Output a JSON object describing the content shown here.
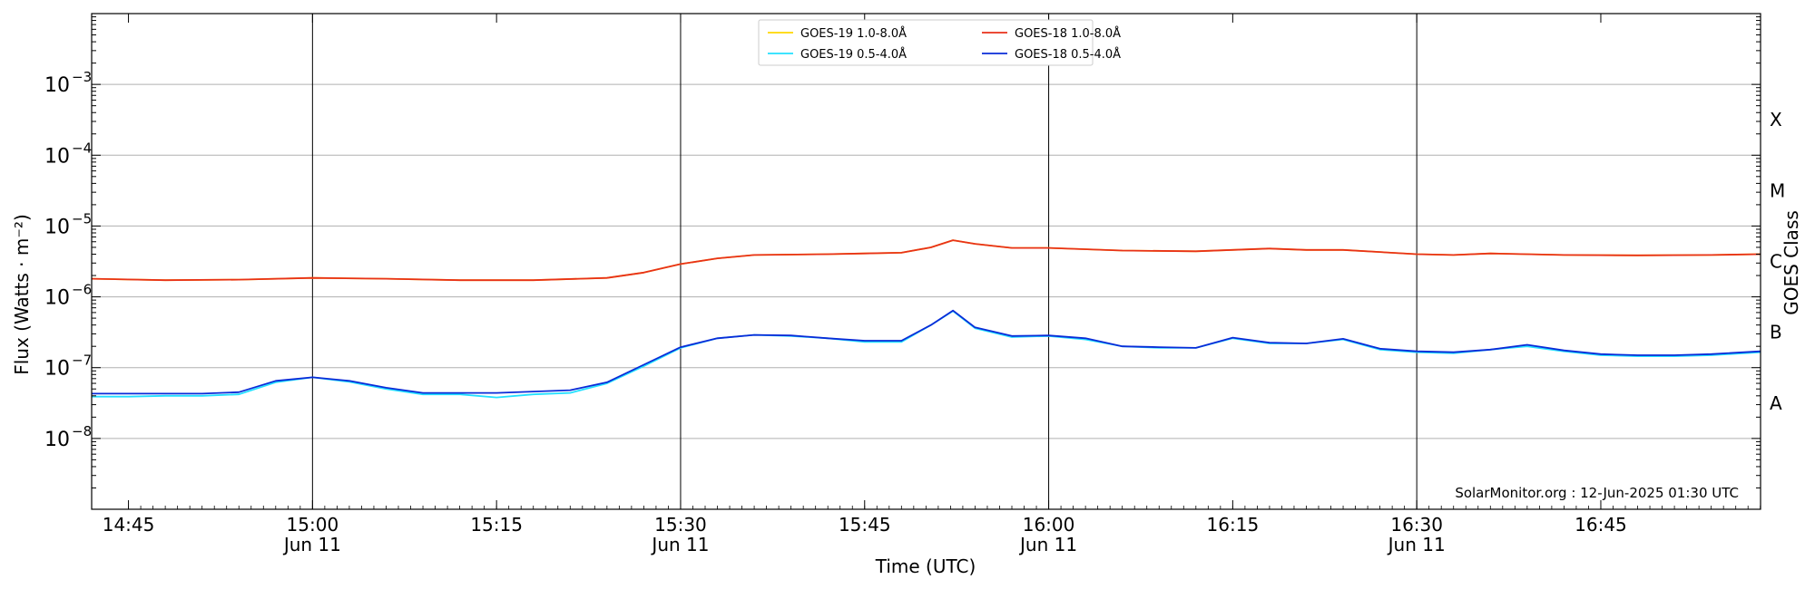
{
  "chart_data": {
    "type": "line",
    "xlabel": "Time (UTC)",
    "ylabel": "Flux (Watts · m⁻²)",
    "ylabel_right": "GOES Class",
    "credit": "SolarMonitor.org : 12-Jun-2025 01:30 UTC",
    "x_unit": "minutes UTC on Jun 11",
    "xlim": [
      14.7,
      16.967
    ],
    "ylog": true,
    "ylim_exp": [
      -9,
      -2
    ],
    "y_tick_exponents": [
      -8,
      -7,
      -6,
      -5,
      -4,
      -3
    ],
    "grid": true,
    "legend_position": "top-center",
    "x_ticks": [
      {
        "t": 14.75,
        "label": "14:45",
        "sublabel": ""
      },
      {
        "t": 15.0,
        "label": "15:00",
        "sublabel": "Jun 11"
      },
      {
        "t": 15.25,
        "label": "15:15",
        "sublabel": ""
      },
      {
        "t": 15.5,
        "label": "15:30",
        "sublabel": "Jun 11"
      },
      {
        "t": 15.75,
        "label": "15:45",
        "sublabel": ""
      },
      {
        "t": 16.0,
        "label": "16:00",
        "sublabel": "Jun 11"
      },
      {
        "t": 16.25,
        "label": "16:15",
        "sublabel": ""
      },
      {
        "t": 16.5,
        "label": "16:30",
        "sublabel": "Jun 11"
      },
      {
        "t": 16.75,
        "label": "16:45",
        "sublabel": ""
      }
    ],
    "vlines": [
      15.0,
      15.5,
      16.0,
      16.5
    ],
    "goes_classes": [
      {
        "label": "A",
        "flux_exp": -7.5
      },
      {
        "label": "B",
        "flux_exp": -6.5
      },
      {
        "label": "C",
        "flux_exp": -5.5
      },
      {
        "label": "M",
        "flux_exp": -4.5
      },
      {
        "label": "X",
        "flux_exp": -3.5
      }
    ],
    "series": [
      {
        "name": "GOES-19 1.0-8.0Å",
        "color": "#ffd700",
        "x": [
          14.7,
          14.8,
          14.9,
          15.0,
          15.1,
          15.2,
          15.3,
          15.4,
          15.45,
          15.5,
          15.55,
          15.6,
          15.7,
          15.75,
          15.8,
          15.84,
          15.87,
          15.9,
          15.95,
          16.0,
          16.1,
          16.2,
          16.3,
          16.35,
          16.4,
          16.5,
          16.55,
          16.6,
          16.7,
          16.8,
          16.9,
          16.967
        ],
        "y": [
          1.8e-06,
          1.72e-06,
          1.75e-06,
          1.85e-06,
          1.8e-06,
          1.72e-06,
          1.72e-06,
          1.85e-06,
          2.2e-06,
          2.9e-06,
          3.5e-06,
          3.9e-06,
          4e-06,
          4.1e-06,
          4.2e-06,
          5e-06,
          6.3e-06,
          5.6e-06,
          4.9e-06,
          4.9e-06,
          4.5e-06,
          4.4e-06,
          4.8e-06,
          4.6e-06,
          4.6e-06,
          4e-06,
          3.9e-06,
          4.1e-06,
          3.9e-06,
          3.85e-06,
          3.9e-06,
          4e-06
        ]
      },
      {
        "name": "GOES-18 1.0-8.0Å",
        "color": "#e8311a",
        "x": [
          14.7,
          14.8,
          14.9,
          15.0,
          15.1,
          15.2,
          15.3,
          15.4,
          15.45,
          15.5,
          15.55,
          15.6,
          15.7,
          15.75,
          15.8,
          15.84,
          15.87,
          15.9,
          15.95,
          16.0,
          16.1,
          16.2,
          16.3,
          16.35,
          16.4,
          16.5,
          16.55,
          16.6,
          16.7,
          16.8,
          16.9,
          16.967
        ],
        "y": [
          1.8e-06,
          1.72e-06,
          1.75e-06,
          1.85e-06,
          1.8e-06,
          1.72e-06,
          1.72e-06,
          1.85e-06,
          2.2e-06,
          2.9e-06,
          3.5e-06,
          3.9e-06,
          4e-06,
          4.1e-06,
          4.2e-06,
          5e-06,
          6.3e-06,
          5.6e-06,
          4.9e-06,
          4.9e-06,
          4.5e-06,
          4.4e-06,
          4.8e-06,
          4.6e-06,
          4.6e-06,
          4e-06,
          3.9e-06,
          4.1e-06,
          3.9e-06,
          3.85e-06,
          3.9e-06,
          4e-06
        ]
      },
      {
        "name": "GOES-19 0.5-4.0Å",
        "color": "#22e0ff",
        "x": [
          14.7,
          14.75,
          14.8,
          14.85,
          14.9,
          14.95,
          15.0,
          15.05,
          15.1,
          15.15,
          15.2,
          15.25,
          15.3,
          15.35,
          15.4,
          15.45,
          15.5,
          15.55,
          15.6,
          15.65,
          15.7,
          15.75,
          15.8,
          15.84,
          15.87,
          15.9,
          15.95,
          16.0,
          16.05,
          16.1,
          16.15,
          16.2,
          16.25,
          16.3,
          16.35,
          16.4,
          16.45,
          16.5,
          16.55,
          16.6,
          16.65,
          16.7,
          16.75,
          16.8,
          16.85,
          16.9,
          16.967
        ],
        "y": [
          3.9e-08,
          3.9e-08,
          4e-08,
          4e-08,
          4.2e-08,
          6.2e-08,
          7.3e-08,
          6.3e-08,
          5e-08,
          4.2e-08,
          4.2e-08,
          3.8e-08,
          4.2e-08,
          4.4e-08,
          6e-08,
          1.05e-07,
          1.9e-07,
          2.6e-07,
          2.9e-07,
          2.8e-07,
          2.6e-07,
          2.3e-07,
          2.3e-07,
          4e-07,
          6.3e-07,
          3.6e-07,
          2.7e-07,
          2.8e-07,
          2.5e-07,
          2e-07,
          1.9e-07,
          1.9e-07,
          2.6e-07,
          2.2e-07,
          2.2e-07,
          2.5e-07,
          1.8e-07,
          1.65e-07,
          1.6e-07,
          1.8e-07,
          2e-07,
          1.7e-07,
          1.5e-07,
          1.45e-07,
          1.45e-07,
          1.5e-07,
          1.65e-07
        ]
      },
      {
        "name": "GOES-18 0.5-4.0Å",
        "color": "#0a2bd8",
        "x": [
          14.7,
          14.75,
          14.8,
          14.85,
          14.9,
          14.95,
          15.0,
          15.05,
          15.1,
          15.15,
          15.2,
          15.25,
          15.3,
          15.35,
          15.4,
          15.45,
          15.5,
          15.55,
          15.6,
          15.65,
          15.7,
          15.75,
          15.8,
          15.84,
          15.87,
          15.9,
          15.95,
          16.0,
          16.05,
          16.1,
          16.15,
          16.2,
          16.25,
          16.3,
          16.35,
          16.4,
          16.45,
          16.5,
          16.55,
          16.6,
          16.65,
          16.7,
          16.75,
          16.8,
          16.85,
          16.9,
          16.967
        ],
        "y": [
          4.3e-08,
          4.3e-08,
          4.3e-08,
          4.3e-08,
          4.5e-08,
          6.5e-08,
          7.3e-08,
          6.5e-08,
          5.2e-08,
          4.4e-08,
          4.4e-08,
          4.4e-08,
          4.6e-08,
          4.8e-08,
          6.2e-08,
          1.1e-07,
          1.95e-07,
          2.6e-07,
          2.9e-07,
          2.85e-07,
          2.6e-07,
          2.4e-07,
          2.4e-07,
          4e-07,
          6.4e-07,
          3.7e-07,
          2.8e-07,
          2.85e-07,
          2.6e-07,
          2e-07,
          1.95e-07,
          1.9e-07,
          2.65e-07,
          2.25e-07,
          2.2e-07,
          2.55e-07,
          1.85e-07,
          1.7e-07,
          1.65e-07,
          1.8e-07,
          2.1e-07,
          1.75e-07,
          1.55e-07,
          1.5e-07,
          1.5e-07,
          1.55e-07,
          1.7e-07
        ]
      }
    ]
  }
}
